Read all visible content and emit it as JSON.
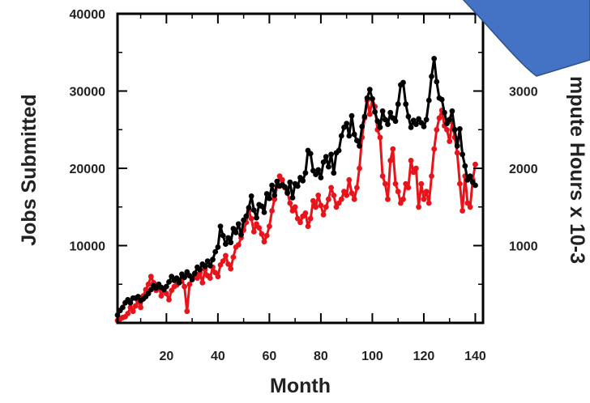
{
  "chart_data": {
    "type": "line",
    "title": "",
    "xlabel": "Month",
    "ylabel_left": "Jobs Submitted",
    "ylabel_right_visible": "mpute Hours x 10-3",
    "xlim": [
      1,
      143
    ],
    "ylim_left": [
      0,
      40000
    ],
    "ylim_right": [
      0,
      4000
    ],
    "x_ticks": [
      20,
      40,
      60,
      80,
      100,
      120,
      140
    ],
    "y_ticks_left": [
      10000,
      20000,
      30000,
      40000
    ],
    "y_ticks_right": [
      1000,
      2000,
      3000
    ],
    "grid": false,
    "legend": "none",
    "series": [
      {
        "axis": "left",
        "color": "#000000",
        "points": [
          [
            1,
            1000
          ],
          [
            2,
            1600
          ],
          [
            3,
            2000
          ],
          [
            4,
            2600
          ],
          [
            5,
            3000
          ],
          [
            6,
            2600
          ],
          [
            7,
            3200
          ],
          [
            8,
            3200
          ],
          [
            9,
            3400
          ],
          [
            10,
            2900
          ],
          [
            11,
            3100
          ],
          [
            12,
            3400
          ],
          [
            13,
            3800
          ],
          [
            14,
            4300
          ],
          [
            15,
            4800
          ],
          [
            16,
            4500
          ],
          [
            17,
            5000
          ],
          [
            18,
            4600
          ],
          [
            19,
            4300
          ],
          [
            20,
            4700
          ],
          [
            21,
            5300
          ],
          [
            22,
            6000
          ],
          [
            23,
            5500
          ],
          [
            24,
            5800
          ],
          [
            25,
            5200
          ],
          [
            26,
            6300
          ],
          [
            27,
            5900
          ],
          [
            28,
            6600
          ],
          [
            29,
            6100
          ],
          [
            30,
            5600
          ],
          [
            31,
            6400
          ],
          [
            32,
            7200
          ],
          [
            33,
            6900
          ],
          [
            34,
            7600
          ],
          [
            35,
            7300
          ],
          [
            36,
            8000
          ],
          [
            37,
            7400
          ],
          [
            38,
            8200
          ],
          [
            39,
            9200
          ],
          [
            40,
            9800
          ],
          [
            41,
            12500
          ],
          [
            42,
            11300
          ],
          [
            43,
            10200
          ],
          [
            44,
            11000
          ],
          [
            45,
            10400
          ],
          [
            46,
            12200
          ],
          [
            47,
            11700
          ],
          [
            48,
            12800
          ],
          [
            49,
            11400
          ],
          [
            50,
            13300
          ],
          [
            51,
            13800
          ],
          [
            52,
            14900
          ],
          [
            53,
            16400
          ],
          [
            54,
            14600
          ],
          [
            55,
            13600
          ],
          [
            56,
            15300
          ],
          [
            57,
            15100
          ],
          [
            58,
            14300
          ],
          [
            59,
            16700
          ],
          [
            60,
            16100
          ],
          [
            61,
            17800
          ],
          [
            62,
            16500
          ],
          [
            63,
            18300
          ],
          [
            64,
            17700
          ],
          [
            65,
            17900
          ],
          [
            66,
            17600
          ],
          [
            67,
            16800
          ],
          [
            68,
            18200
          ],
          [
            69,
            16200
          ],
          [
            70,
            18000
          ],
          [
            71,
            17700
          ],
          [
            72,
            18800
          ],
          [
            73,
            18400
          ],
          [
            74,
            19400
          ],
          [
            75,
            22300
          ],
          [
            76,
            21900
          ],
          [
            77,
            19700
          ],
          [
            78,
            19200
          ],
          [
            79,
            19800
          ],
          [
            80,
            18800
          ],
          [
            81,
            20800
          ],
          [
            82,
            21500
          ],
          [
            83,
            20200
          ],
          [
            84,
            21800
          ],
          [
            85,
            19400
          ],
          [
            86,
            22000
          ],
          [
            87,
            22300
          ],
          [
            88,
            24200
          ],
          [
            89,
            25300
          ],
          [
            90,
            25800
          ],
          [
            91,
            24200
          ],
          [
            92,
            26800
          ],
          [
            93,
            24400
          ],
          [
            94,
            23600
          ],
          [
            95,
            22900
          ],
          [
            96,
            25400
          ],
          [
            97,
            26700
          ],
          [
            98,
            29100
          ],
          [
            99,
            30200
          ],
          [
            100,
            29000
          ],
          [
            101,
            27300
          ],
          [
            102,
            26100
          ],
          [
            103,
            25300
          ],
          [
            104,
            27400
          ],
          [
            105,
            26300
          ],
          [
            106,
            25700
          ],
          [
            107,
            27200
          ],
          [
            108,
            26500
          ],
          [
            109,
            26100
          ],
          [
            110,
            28300
          ],
          [
            111,
            30800
          ],
          [
            112,
            31100
          ],
          [
            113,
            28300
          ],
          [
            114,
            26700
          ],
          [
            115,
            25300
          ],
          [
            116,
            26200
          ],
          [
            117,
            25700
          ],
          [
            118,
            26400
          ],
          [
            119,
            25900
          ],
          [
            120,
            25400
          ],
          [
            121,
            26300
          ],
          [
            122,
            28800
          ],
          [
            123,
            31900
          ],
          [
            124,
            34200
          ],
          [
            125,
            31200
          ],
          [
            126,
            29100
          ],
          [
            127,
            28900
          ],
          [
            128,
            27200
          ],
          [
            129,
            25800
          ],
          [
            130,
            26300
          ],
          [
            131,
            27400
          ],
          [
            132,
            25000
          ],
          [
            133,
            22900
          ],
          [
            134,
            25100
          ],
          [
            135,
            21800
          ],
          [
            136,
            20300
          ],
          [
            137,
            18500
          ],
          [
            138,
            19000
          ],
          [
            139,
            18200
          ],
          [
            140,
            17800
          ]
        ]
      },
      {
        "axis": "right",
        "color": "#e8141b",
        "points": [
          [
            1,
            30
          ],
          [
            2,
            50
          ],
          [
            3,
            70
          ],
          [
            4,
            80
          ],
          [
            5,
            120
          ],
          [
            6,
            200
          ],
          [
            7,
            150
          ],
          [
            8,
            220
          ],
          [
            9,
            280
          ],
          [
            10,
            200
          ],
          [
            11,
            350
          ],
          [
            12,
            430
          ],
          [
            13,
            500
          ],
          [
            14,
            600
          ],
          [
            15,
            520
          ],
          [
            16,
            420
          ],
          [
            17,
            480
          ],
          [
            18,
            350
          ],
          [
            19,
            430
          ],
          [
            20,
            380
          ],
          [
            21,
            300
          ],
          [
            22,
            420
          ],
          [
            23,
            470
          ],
          [
            24,
            490
          ],
          [
            25,
            530
          ],
          [
            26,
            560
          ],
          [
            27,
            470
          ],
          [
            28,
            150
          ],
          [
            29,
            500
          ],
          [
            30,
            580
          ],
          [
            31,
            610
          ],
          [
            32,
            580
          ],
          [
            33,
            650
          ],
          [
            34,
            520
          ],
          [
            35,
            690
          ],
          [
            36,
            610
          ],
          [
            37,
            580
          ],
          [
            38,
            720
          ],
          [
            39,
            650
          ],
          [
            40,
            600
          ],
          [
            41,
            750
          ],
          [
            42,
            800
          ],
          [
            43,
            870
          ],
          [
            44,
            760
          ],
          [
            45,
            700
          ],
          [
            46,
            850
          ],
          [
            47,
            980
          ],
          [
            48,
            1010
          ],
          [
            49,
            1100
          ],
          [
            50,
            1200
          ],
          [
            51,
            1300
          ],
          [
            52,
            1450
          ],
          [
            53,
            1350
          ],
          [
            54,
            1180
          ],
          [
            55,
            1280
          ],
          [
            56,
            1230
          ],
          [
            57,
            1150
          ],
          [
            58,
            1050
          ],
          [
            59,
            1130
          ],
          [
            60,
            1250
          ],
          [
            61,
            1450
          ],
          [
            62,
            1600
          ],
          [
            63,
            1770
          ],
          [
            64,
            1900
          ],
          [
            65,
            1850
          ],
          [
            66,
            1750
          ],
          [
            67,
            1700
          ],
          [
            68,
            1550
          ],
          [
            69,
            1450
          ],
          [
            70,
            1500
          ],
          [
            71,
            1350
          ],
          [
            72,
            1300
          ],
          [
            73,
            1380
          ],
          [
            74,
            1420
          ],
          [
            75,
            1250
          ],
          [
            76,
            1350
          ],
          [
            77,
            1580
          ],
          [
            78,
            1500
          ],
          [
            79,
            1650
          ],
          [
            80,
            1520
          ],
          [
            81,
            1400
          ],
          [
            82,
            1500
          ],
          [
            83,
            1600
          ],
          [
            84,
            1750
          ],
          [
            85,
            1650
          ],
          [
            86,
            1500
          ],
          [
            87,
            1550
          ],
          [
            88,
            1600
          ],
          [
            89,
            1700
          ],
          [
            90,
            1650
          ],
          [
            91,
            1850
          ],
          [
            92,
            1680
          ],
          [
            93,
            1600
          ],
          [
            94,
            1750
          ],
          [
            95,
            2000
          ],
          [
            96,
            2400
          ],
          [
            97,
            2650
          ],
          [
            98,
            2880
          ],
          [
            99,
            2700
          ],
          [
            100,
            2900
          ],
          [
            101,
            2800
          ],
          [
            102,
            2500
          ],
          [
            103,
            2400
          ],
          [
            104,
            1900
          ],
          [
            105,
            1800
          ],
          [
            106,
            1600
          ],
          [
            107,
            2100
          ],
          [
            108,
            2250
          ],
          [
            109,
            1800
          ],
          [
            110,
            1700
          ],
          [
            111,
            1550
          ],
          [
            112,
            1600
          ],
          [
            113,
            1800
          ],
          [
            114,
            1750
          ],
          [
            115,
            2100
          ],
          [
            116,
            1950
          ],
          [
            117,
            2000
          ],
          [
            118,
            1500
          ],
          [
            119,
            1800
          ],
          [
            120,
            1600
          ],
          [
            121,
            1700
          ],
          [
            122,
            1550
          ],
          [
            123,
            1900
          ],
          [
            124,
            2250
          ],
          [
            125,
            2500
          ],
          [
            126,
            2650
          ],
          [
            127,
            2750
          ],
          [
            128,
            2550
          ],
          [
            129,
            2500
          ],
          [
            130,
            2350
          ],
          [
            131,
            2600
          ],
          [
            132,
            2400
          ],
          [
            133,
            2200
          ],
          [
            134,
            1800
          ],
          [
            135,
            1450
          ],
          [
            136,
            1900
          ],
          [
            137,
            1550
          ],
          [
            138,
            1500
          ],
          [
            139,
            1850
          ],
          [
            140,
            2050
          ]
        ]
      }
    ]
  },
  "overlay": {
    "shape_color": "#4472c4",
    "shape_border": "#2f528f"
  }
}
